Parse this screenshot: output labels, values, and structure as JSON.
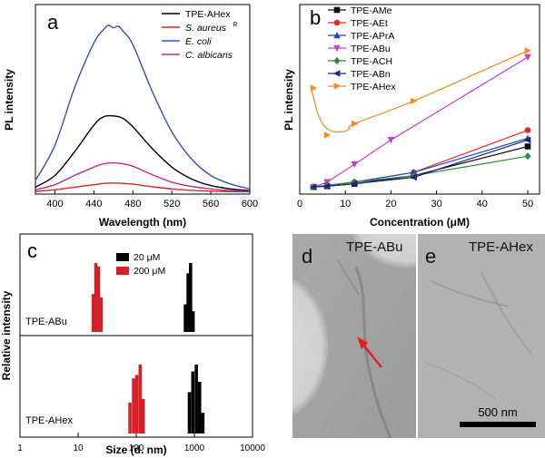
{
  "panels": {
    "a": {
      "letter": "a"
    },
    "b": {
      "letter": "b"
    },
    "c": {
      "letter": "c"
    },
    "d": {
      "letter": "d",
      "label": "TPE-ABu"
    },
    "e": {
      "letter": "e",
      "label": "TPE-AHex",
      "scalebar": "500 nm"
    }
  },
  "chart_data": [
    {
      "panel": "a",
      "type": "line",
      "xlabel": "Wavelength (nm)",
      "ylabel": "PL intensity",
      "xlim": [
        380,
        600
      ],
      "xticks": [
        "400",
        "440",
        "480",
        "520",
        "560",
        "600"
      ],
      "xtick_values": [
        400,
        440,
        480,
        520,
        560,
        600
      ],
      "ylim": [
        0,
        100
      ],
      "y_tick_labels": false,
      "grid": false,
      "legend": "top-right",
      "series": [
        {
          "name": "TPE-AHex",
          "color": "#000000",
          "x": [
            380,
            400,
            420,
            440,
            450,
            460,
            470,
            480,
            500,
            520,
            540,
            560,
            580,
            600
          ],
          "y": [
            3,
            10,
            24,
            40,
            45,
            45.5,
            44,
            39,
            26,
            15,
            8,
            4,
            2,
            1
          ]
        },
        {
          "name": "S. aureus",
          "name_sup": "R",
          "color": "#d62728",
          "x": [
            380,
            400,
            420,
            440,
            450,
            460,
            470,
            480,
            500,
            520,
            540,
            560,
            580,
            600
          ],
          "y": [
            0.5,
            1.5,
            3,
            4.5,
            5.3,
            5.5,
            5.3,
            4.8,
            3.3,
            2,
            1.2,
            0.7,
            0.4,
            0.2
          ]
        },
        {
          "name": "E. coli",
          "color": "#3a4fb8",
          "x": [
            380,
            400,
            420,
            440,
            450,
            455,
            460,
            465,
            470,
            480,
            500,
            520,
            540,
            560,
            580,
            600
          ],
          "y": [
            7,
            28,
            62,
            89,
            97,
            99.5,
            98,
            99,
            96,
            88,
            60,
            36,
            20,
            10,
            5,
            2
          ]
        },
        {
          "name": "C. albicans",
          "color": "#b0309a",
          "x": [
            380,
            400,
            420,
            440,
            450,
            460,
            470,
            480,
            500,
            520,
            540,
            560,
            580,
            600
          ],
          "y": [
            1.5,
            4.5,
            10,
            15,
            17,
            17.5,
            17,
            15.5,
            10.5,
            6,
            3.5,
            2,
            1,
            0.5
          ]
        }
      ]
    },
    {
      "panel": "b",
      "type": "line",
      "xlabel": "Concentration (μM)",
      "ylabel": "PL intensity",
      "xlim": [
        0,
        50
      ],
      "xticks": [
        "0",
        "10",
        "20",
        "30",
        "40",
        "50"
      ],
      "ylim": [
        0,
        100
      ],
      "y_tick_labels": false,
      "grid": false,
      "legend": "top-left",
      "series": [
        {
          "name": "TPE-AMe",
          "color": "#111111",
          "marker": "square",
          "x": [
            3,
            6,
            12,
            25,
            50
          ],
          "y": [
            1,
            1.5,
            3,
            8,
            26
          ]
        },
        {
          "name": "TPE-AEt",
          "color": "#e8281e",
          "marker": "circle",
          "x": [
            3,
            6,
            12,
            25,
            50
          ],
          "y": [
            1,
            1.8,
            4,
            10,
            36
          ]
        },
        {
          "name": "TPE-APrA",
          "color": "#2244cc",
          "marker": "triangle-up",
          "x": [
            3,
            6,
            12,
            25,
            50
          ],
          "y": [
            1,
            2,
            4,
            10,
            31
          ]
        },
        {
          "name": "TPE-ABu",
          "color": "#cc3ccc",
          "marker": "triangle-down",
          "x": [
            3,
            6,
            12,
            20,
            50
          ],
          "y": [
            1,
            4,
            15,
            30,
            81
          ]
        },
        {
          "name": "TPE-ACH",
          "color": "#2b8a3e",
          "marker": "diamond",
          "x": [
            3,
            6,
            12,
            25,
            50
          ],
          "y": [
            1,
            2,
            4,
            8,
            20
          ]
        },
        {
          "name": "TPE-ABn",
          "color": "#23237a",
          "marker": "triangle-left",
          "x": [
            3,
            6,
            12,
            25,
            50
          ],
          "y": [
            1,
            1.5,
            3,
            7,
            30
          ]
        },
        {
          "name": "TPE-AHex",
          "color": "#f28c1e",
          "marker": "triangle-right",
          "x": [
            3,
            6,
            12,
            25,
            50
          ],
          "y": [
            62,
            33,
            40,
            54,
            85
          ],
          "curve_x": [
            2.5,
            3,
            4,
            5,
            6,
            7,
            8,
            9,
            10,
            11,
            12,
            25,
            50
          ],
          "curve_y": [
            62,
            56,
            46,
            40,
            37,
            35.5,
            35,
            35,
            35.5,
            37,
            40,
            54,
            85
          ]
        }
      ]
    },
    {
      "panel": "c",
      "type": "bar",
      "xlabel": "Size (d. nm)",
      "ylabel": "Relative intensity",
      "xscale": "log",
      "xlim": [
        1,
        10000
      ],
      "xticks": [
        "1",
        "10",
        "100",
        "1000",
        "10000"
      ],
      "xtick_values": [
        1,
        10,
        100,
        1000,
        10000
      ],
      "legend": "top-center",
      "legend_entries": [
        {
          "name": "20 μM",
          "color": "#000000"
        },
        {
          "name": "200 μM",
          "color": "#d61f26"
        }
      ],
      "subplots": [
        {
          "label": "TPE-ABu",
          "bars": [
            {
              "color": "#d61f26",
              "x": [
                18.2,
                20.2,
                22.4,
                24.8
              ],
              "h": [
                0.55,
                1.0,
                0.95,
                0.5
              ]
            },
            {
              "color": "#000000",
              "x": [
                700,
                780,
                860,
                950
              ],
              "h": [
                0.4,
                0.85,
                1.0,
                0.3
              ]
            }
          ]
        },
        {
          "label": "TPE-AHex",
          "bars": [
            {
              "color": "#d61f26",
              "x": [
                78,
                90,
                102,
                117,
                132
              ],
              "h": [
                0.45,
                0.8,
                0.85,
                1.0,
                0.5
              ]
            },
            {
              "color": "#000000",
              "x": [
                820,
                940,
                1080,
                1230,
                1400
              ],
              "h": [
                0.6,
                0.9,
                1.0,
                0.75,
                0.3
              ]
            }
          ]
        }
      ]
    }
  ]
}
